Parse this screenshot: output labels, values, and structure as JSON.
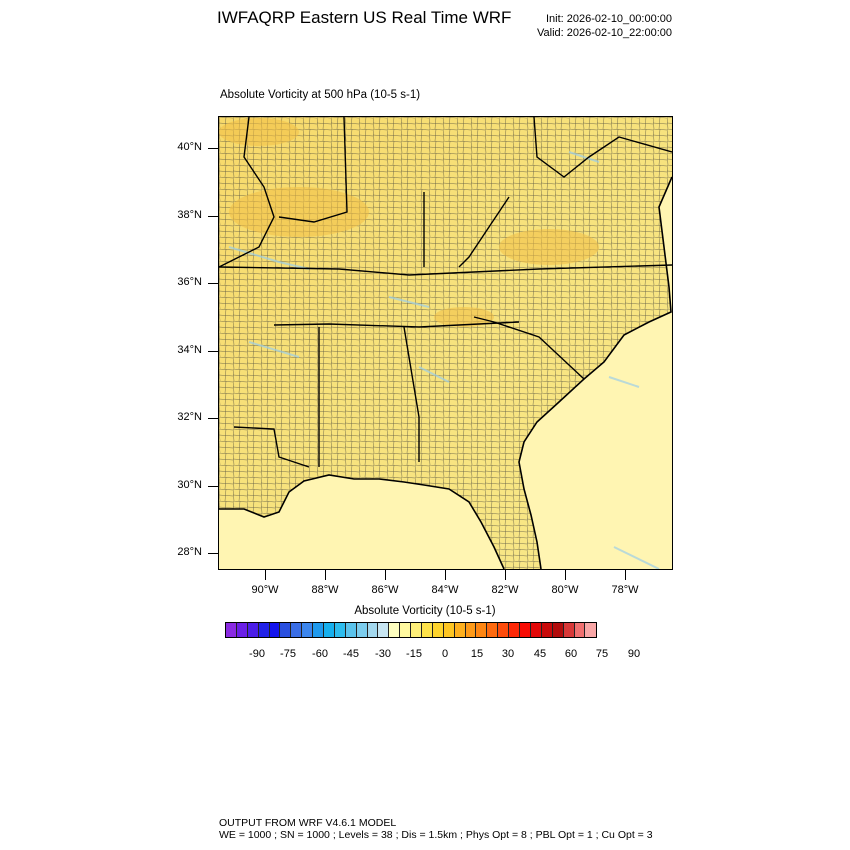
{
  "header": {
    "title": "IWFAQRP Eastern US Real Time WRF",
    "init": "Init: 2026-02-10_00:00:00",
    "valid": "Valid: 2026-02-10_22:00:00"
  },
  "map": {
    "subtitle": "Absolute Vorticity at 500 hPa   (10-5 s-1)",
    "lat_labels": [
      "40°N",
      "38°N",
      "36°N",
      "34°N",
      "32°N",
      "30°N",
      "28°N"
    ],
    "lon_labels": [
      "90°W",
      "88°W",
      "86°W",
      "84°W",
      "82°W",
      "80°W",
      "78°W"
    ],
    "land_color": "#f6e27a",
    "ocean_color": "#fff6b0",
    "boundary_color": "#000000"
  },
  "colorbar": {
    "title": "Absolute Vorticity  (10-5 s-1)",
    "labels": [
      "-90",
      "-75",
      "-60",
      "-45",
      "-30",
      "-15",
      "0",
      "15",
      "30",
      "45",
      "60",
      "75",
      "90"
    ],
    "colors": [
      "#8a2be2",
      "#6a1fe6",
      "#4b1ee8",
      "#2222e8",
      "#1414ee",
      "#2a50e0",
      "#3a6ee6",
      "#3c86ee",
      "#1f9aee",
      "#17b0ee",
      "#2dbcee",
      "#5bc3ec",
      "#7ccdee",
      "#a3d8ee",
      "#c8e6f2",
      "#ffffc0",
      "#fff9a0",
      "#fff07a",
      "#ffe34a",
      "#ffd52e",
      "#ffc623",
      "#ffb01e",
      "#ff9a18",
      "#ff8612",
      "#ff6a0f",
      "#ff4c0c",
      "#ff2a08",
      "#f80c04",
      "#e20808",
      "#c80a0a",
      "#b20c0c",
      "#d83838",
      "#f07070",
      "#f8a6a6"
    ]
  },
  "footer": {
    "line1": "OUTPUT FROM WRF V4.6.1 MODEL",
    "line2": "WE = 1000 ; SN = 1000 ; Levels = 38 ; Dis = 1.5km ; Phys Opt = 8 ; PBL Opt = 1 ; Cu Opt = 3"
  }
}
